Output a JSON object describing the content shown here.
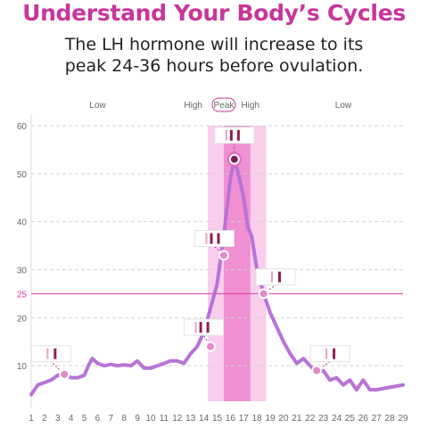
{
  "title": "Understand Your Body’s Cycles",
  "subtitle_line1": "The LH hormone will increase to its",
  "subtitle_line2": "peak 24-36 hours before ovulation.",
  "chart_data": {
    "type": "line",
    "x": [
      1,
      2,
      3,
      4,
      5,
      6,
      7,
      8,
      9,
      10,
      11,
      12,
      13,
      14,
      15,
      16,
      17,
      18,
      19,
      20,
      21,
      22,
      23,
      24,
      25,
      26,
      27,
      28,
      29
    ],
    "ylim": [
      0,
      60
    ],
    "xlim": [
      1,
      29
    ],
    "y_ticks": [
      10,
      20,
      30,
      40,
      50,
      60
    ],
    "threshold": {
      "value": 25,
      "label": "25",
      "color": "#d63aa3"
    },
    "phase_labels": [
      {
        "x": 6,
        "text": "Low"
      },
      {
        "x": 13.2,
        "text": "High"
      },
      {
        "x": 15.5,
        "text": "Peak",
        "boxed": true
      },
      {
        "x": 17.5,
        "text": "High"
      },
      {
        "x": 24.5,
        "text": "Low"
      }
    ],
    "bands": [
      {
        "from": 14.3,
        "to": 18.7,
        "color": "#f9cdec"
      },
      {
        "from": 15.5,
        "to": 17.5,
        "color": "#f08fd2"
      }
    ],
    "series": [
      {
        "color": "#b872d8",
        "points": [
          [
            1,
            4
          ],
          [
            1.5,
            6
          ],
          [
            2,
            6.5
          ],
          [
            2.5,
            7
          ],
          [
            3,
            8
          ],
          [
            3.5,
            8.2
          ],
          [
            4,
            7.5
          ],
          [
            4.5,
            7.5
          ],
          [
            5,
            8
          ],
          [
            5.3,
            10
          ],
          [
            5.6,
            11.5
          ],
          [
            6,
            10.5
          ],
          [
            6.5,
            10
          ],
          [
            7,
            10.3
          ],
          [
            7.5,
            10
          ],
          [
            8,
            10.2
          ],
          [
            8.5,
            10
          ],
          [
            9,
            11
          ],
          [
            9.5,
            9.5
          ],
          [
            10,
            9.5
          ],
          [
            10.5,
            10
          ],
          [
            11,
            10.5
          ],
          [
            11.5,
            11
          ],
          [
            12,
            11
          ],
          [
            12.5,
            10.5
          ],
          [
            13,
            12.5
          ],
          [
            13.5,
            14
          ],
          [
            14,
            17
          ],
          [
            14.5,
            22
          ],
          [
            15,
            27
          ],
          [
            15.5,
            37
          ],
          [
            16,
            49
          ],
          [
            16.3,
            53
          ],
          [
            16.6,
            50
          ],
          [
            17,
            45
          ],
          [
            17.3,
            39
          ],
          [
            17.6,
            37
          ],
          [
            18,
            30
          ],
          [
            18.5,
            25
          ],
          [
            19,
            21
          ],
          [
            19.5,
            18
          ],
          [
            20,
            15
          ],
          [
            20.5,
            12.5
          ],
          [
            21,
            10.5
          ],
          [
            21.5,
            11.5
          ],
          [
            22,
            10
          ],
          [
            22.5,
            8.5
          ],
          [
            23,
            9
          ],
          [
            23.5,
            7
          ],
          [
            24,
            7.5
          ],
          [
            24.5,
            6
          ],
          [
            25,
            7
          ],
          [
            25.5,
            5
          ],
          [
            26,
            7
          ],
          [
            26.5,
            5
          ],
          [
            27,
            5
          ],
          [
            28,
            5.5
          ],
          [
            29,
            6
          ]
        ]
      }
    ],
    "markers": [
      {
        "x": 3.5,
        "y": 8.2,
        "style": "light"
      },
      {
        "x": 14.5,
        "y": 14,
        "style": "light"
      },
      {
        "x": 15.5,
        "y": 33,
        "style": "light"
      },
      {
        "x": 16.3,
        "y": 53,
        "style": "dark"
      },
      {
        "x": 18.5,
        "y": 25,
        "style": "light"
      },
      {
        "x": 22.5,
        "y": 9,
        "style": "light"
      }
    ],
    "test_strips": [
      {
        "x": 3.5,
        "y": 8.2,
        "lines": 1,
        "box_x": 2.5,
        "box_y": 12.5
      },
      {
        "x": 14.5,
        "y": 14,
        "lines": 2,
        "box_x": 14,
        "box_y": 18
      },
      {
        "x": 15.5,
        "y": 33,
        "lines": 2,
        "box_x": 14.8,
        "box_y": 36.5
      },
      {
        "x": 16.3,
        "y": 53,
        "lines": 2,
        "box_x": 16.3,
        "box_y": 58
      },
      {
        "x": 18.5,
        "y": 25,
        "lines": 1,
        "box_x": 19.4,
        "box_y": 28.5
      },
      {
        "x": 22.5,
        "y": 9,
        "lines": 1,
        "box_x": 23.5,
        "box_y": 12.5
      }
    ]
  }
}
